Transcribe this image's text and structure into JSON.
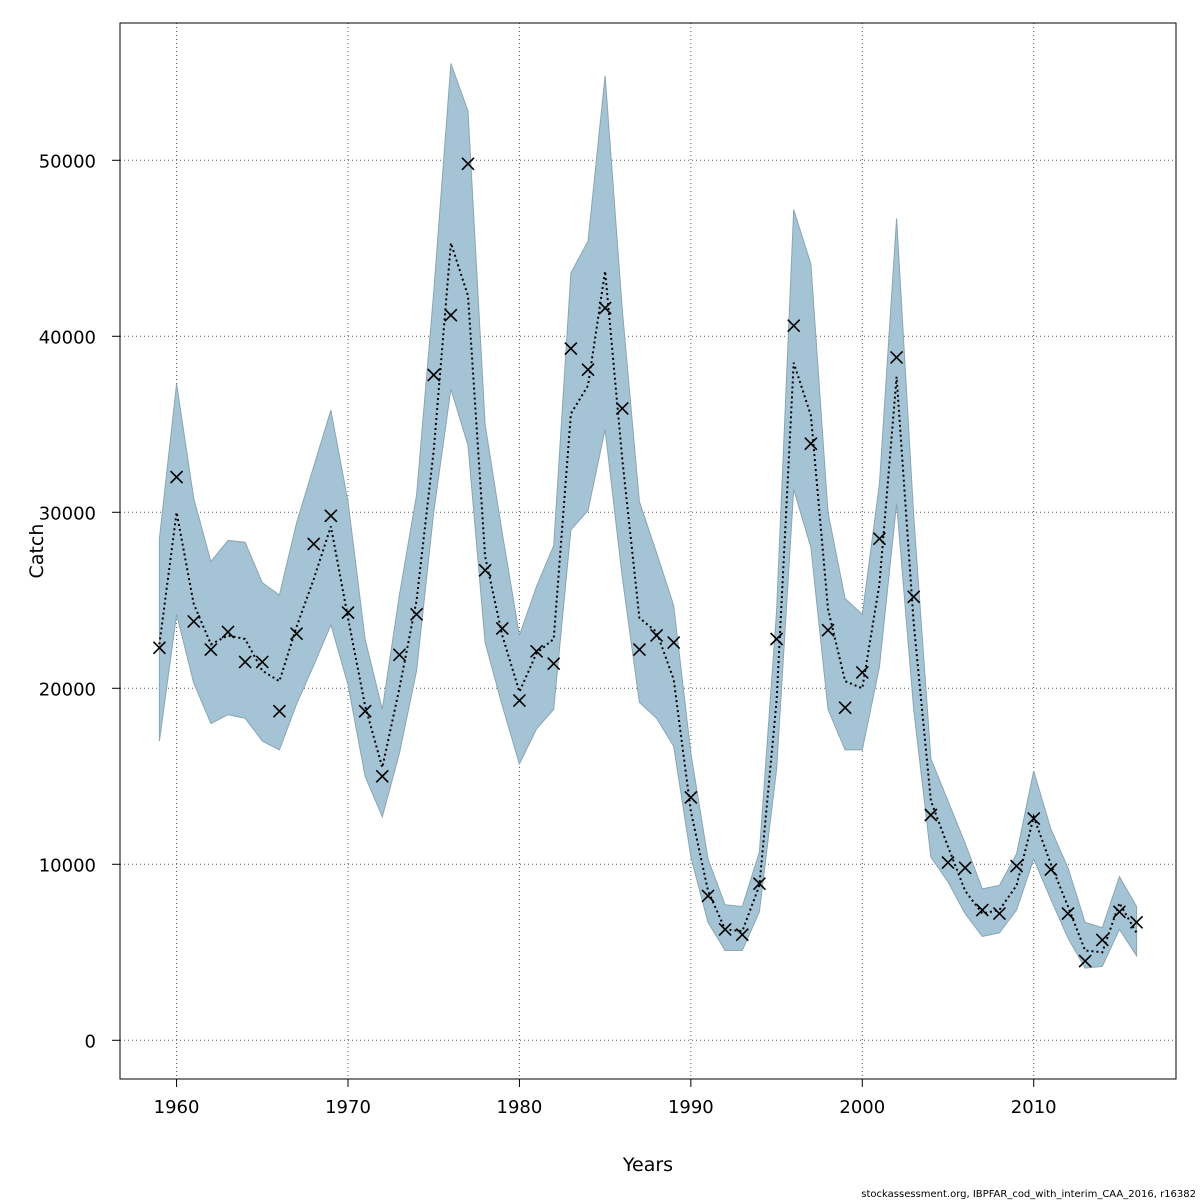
{
  "chart_data": {
    "type": "line",
    "xlabel": "Years",
    "ylabel": "Catch",
    "xlim": [
      1956.7,
      2018.3
    ],
    "ylim": [
      -2200,
      57800
    ],
    "x_ticks": [
      1960,
      1970,
      1980,
      1990,
      2000,
      2010
    ],
    "y_ticks": [
      0,
      10000,
      20000,
      30000,
      40000,
      50000
    ],
    "x_tick_labels": [
      "1960",
      "1970",
      "1980",
      "1990",
      "2000",
      "2010"
    ],
    "y_tick_labels": [
      "0",
      "10000",
      "20000",
      "30000",
      "40000",
      "50000"
    ],
    "grid": true,
    "band_color": "#a4c4d5",
    "band_edge_color": "#8aa5b3",
    "years": [
      1959,
      1960,
      1961,
      1962,
      1963,
      1964,
      1965,
      1966,
      1967,
      1968,
      1969,
      1970,
      1971,
      1972,
      1973,
      1974,
      1975,
      1976,
      1977,
      1978,
      1979,
      1980,
      1981,
      1982,
      1983,
      1984,
      1985,
      1986,
      1987,
      1988,
      1989,
      1990,
      1991,
      1992,
      1993,
      1994,
      1995,
      1996,
      1997,
      1998,
      1999,
      2000,
      2001,
      2002,
      2003,
      2004,
      2005,
      2006,
      2007,
      2008,
      2009,
      2010,
      2011,
      2012,
      2013,
      2014,
      2015,
      2016
    ],
    "series": [
      {
        "name": "Estimated catch",
        "style": "dotted",
        "values": [
          22500,
          30000,
          24800,
          22500,
          23000,
          22800,
          21000,
          20400,
          23500,
          26200,
          29200,
          24000,
          19000,
          15500,
          20000,
          25000,
          33500,
          45300,
          42300,
          27500,
          23000,
          19800,
          22000,
          22800,
          35600,
          37200,
          43700,
          33000,
          24000,
          23200,
          20500,
          13000,
          8500,
          6300,
          6200,
          8800,
          19300,
          38500,
          35500,
          24500,
          20400,
          20000,
          25900,
          37700,
          23700,
          13600,
          11000,
          8500,
          7200,
          7400,
          8800,
          12700,
          10000,
          7600,
          5100,
          5000,
          7800,
          6100
        ]
      },
      {
        "name": "Upper confidence bound",
        "values": [
          28500,
          37300,
          30800,
          27200,
          28400,
          28300,
          26000,
          25300,
          29400,
          32600,
          35800,
          30600,
          22800,
          18800,
          25300,
          31000,
          42500,
          55500,
          52800,
          35000,
          28800,
          23000,
          25800,
          28100,
          43600,
          45400,
          54800,
          41500,
          30600,
          27700,
          24700,
          16300,
          10300,
          7700,
          7600,
          10700,
          24400,
          47200,
          44100,
          30000,
          25100,
          24200,
          31600,
          46700,
          29800,
          16000,
          13600,
          11200,
          8600,
          8800,
          10600,
          15300,
          12000,
          9800,
          6700,
          6400,
          9300,
          7600
        ]
      },
      {
        "name": "Lower confidence bound",
        "values": [
          17000,
          24200,
          20300,
          18000,
          18500,
          18300,
          17000,
          16500,
          19100,
          21300,
          23600,
          20200,
          15000,
          12700,
          16300,
          21000,
          30000,
          37000,
          33800,
          22600,
          19000,
          15700,
          17700,
          18800,
          29000,
          30100,
          34700,
          26300,
          19200,
          18300,
          16700,
          10400,
          6700,
          5100,
          5100,
          7300,
          15400,
          31300,
          28000,
          18800,
          16500,
          16500,
          21200,
          30500,
          18800,
          10400,
          9000,
          7200,
          5900,
          6100,
          7400,
          10300,
          8000,
          5800,
          4100,
          4200,
          6300,
          4800
        ]
      },
      {
        "name": "Observed catch",
        "marker": "x",
        "values": [
          22300,
          32000,
          23800,
          22200,
          23200,
          21500,
          21500,
          18700,
          23100,
          28200,
          29800,
          24300,
          18700,
          15000,
          21900,
          24200,
          37800,
          41200,
          49800,
          26700,
          23400,
          19300,
          22100,
          21400,
          39300,
          38100,
          41600,
          35900,
          22200,
          23000,
          22600,
          13800,
          8200,
          6300,
          6000,
          8900,
          22800,
          40600,
          33900,
          23300,
          18900,
          20900,
          28500,
          38800,
          25200,
          12800,
          10100,
          9800,
          7400,
          7200,
          9900,
          12600,
          9700,
          7200,
          4500,
          5700,
          7300,
          6700
        ]
      }
    ],
    "caption": "stockassessment.org, IBPFAR_cod_with_interim_CAA_2016, r16382"
  }
}
